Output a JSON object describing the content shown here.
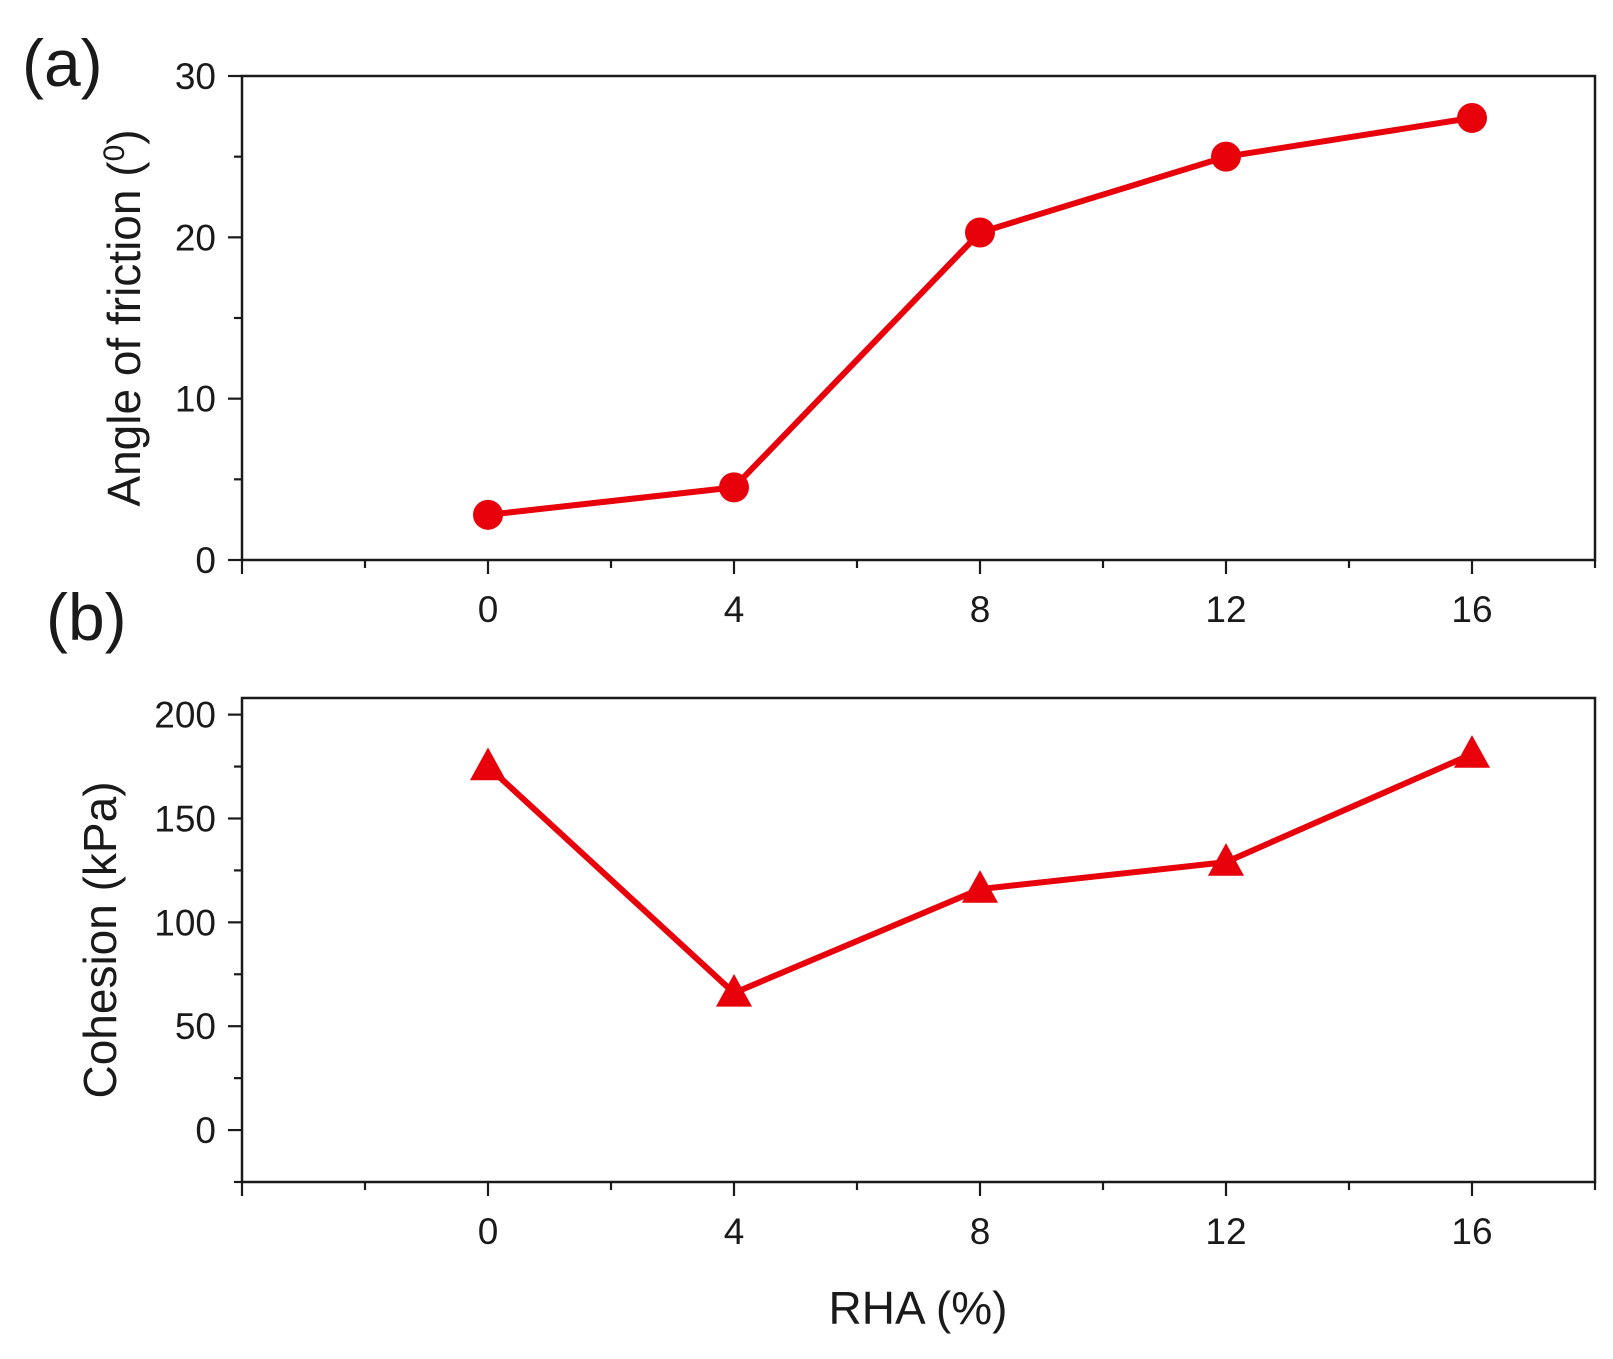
{
  "chart_data": [
    {
      "type": "line",
      "panel_label": "(a)",
      "title": "",
      "x": [
        0,
        4,
        8,
        12,
        16
      ],
      "series": [
        {
          "name": "Angle of friction",
          "marker": "circle",
          "values": [
            2.8,
            4.5,
            20.3,
            25.0,
            27.4
          ]
        }
      ],
      "xlabel": "",
      "ylabel_main": "Angle of  friction (",
      "ylabel_sup": "0",
      "ylabel_close": ")",
      "xlim": [
        -4,
        18
      ],
      "ylim": [
        0,
        30
      ],
      "xticks": [
        0,
        4,
        8,
        12,
        16
      ],
      "xtick_labels": [
        "0",
        "4",
        "8",
        "12",
        "16"
      ],
      "yticks": [
        0,
        10,
        20,
        30
      ],
      "ytick_labels": [
        "0",
        "10",
        "20",
        "30"
      ],
      "x_minor_step": 2,
      "y_minor_step": 5,
      "grid": false
    },
    {
      "type": "line",
      "panel_label": "(b)",
      "title": "",
      "x": [
        0,
        4,
        8,
        12,
        16
      ],
      "series": [
        {
          "name": "Cohesion",
          "marker": "triangle",
          "values": [
            175,
            66,
            116,
            129,
            181
          ]
        }
      ],
      "xlabel": "RHA (%)",
      "ylabel": "Cohesion (kPa)",
      "xlim": [
        -4,
        18
      ],
      "ylim": [
        -25,
        208
      ],
      "xticks": [
        0,
        4,
        8,
        12,
        16
      ],
      "xtick_labels": [
        "0",
        "4",
        "8",
        "12",
        "16"
      ],
      "yticks": [
        0,
        50,
        100,
        150,
        200
      ],
      "ytick_labels": [
        "0",
        "50",
        "100",
        "150",
        "200"
      ],
      "x_minor_step": 2,
      "y_minor_step": 25,
      "grid": false
    }
  ],
  "colors": {
    "series": "#e8000b",
    "axis": "#1a1a1a"
  }
}
